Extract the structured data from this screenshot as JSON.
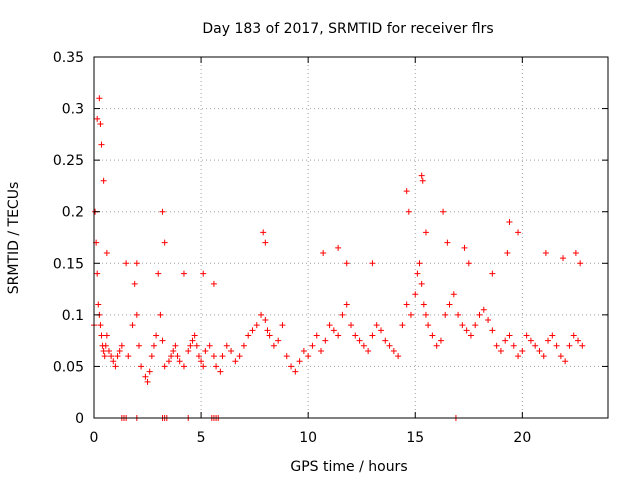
{
  "chart_data": {
    "type": "scatter",
    "title": "Day 183 of 2017, SRMTID for receiver flrs",
    "xlabel": "GPS time / hours",
    "ylabel": "SRMTID / TECUs",
    "xlim": [
      0,
      24
    ],
    "ylim": [
      0,
      0.35
    ],
    "x_ticks": [
      0,
      5,
      10,
      15,
      20
    ],
    "x_tick_labels": [
      "0",
      "5",
      "10",
      "15",
      "20"
    ],
    "y_ticks": [
      0,
      0.05,
      0.1,
      0.15,
      0.2,
      0.25,
      0.3,
      0.35
    ],
    "y_tick_labels": [
      "0",
      "0.05",
      "0.1",
      "0.15",
      "0.2",
      "0.25",
      "0.3",
      "0.35"
    ],
    "grid": true,
    "legend": "none",
    "marker": "+",
    "color": "#ff0000",
    "series": [
      {
        "x": [
          0.0,
          0.05,
          0.1,
          0.15,
          0.2,
          0.25,
          0.3,
          0.35,
          0.4,
          0.45,
          0.5,
          0.55,
          0.6,
          0.7,
          0.8,
          0.9,
          1.0,
          1.1,
          1.2,
          1.3,
          1.6,
          1.8,
          1.9,
          2.0,
          2.1,
          2.2,
          2.4,
          2.5,
          2.6,
          2.7,
          2.8,
          2.9,
          3.0,
          3.1,
          3.2,
          3.3,
          3.5,
          3.6,
          3.7,
          3.8,
          3.9,
          4.0,
          4.2,
          4.4,
          4.5,
          4.6,
          4.7,
          4.8,
          4.9,
          5.0,
          5.1,
          5.2,
          5.4,
          5.6,
          5.7,
          5.9,
          6.0,
          6.2,
          6.4,
          6.6,
          6.8,
          7.0,
          7.2,
          7.4,
          7.6,
          7.8,
          8.0,
          8.1,
          8.2,
          8.4,
          8.6,
          8.8,
          9.0,
          9.2,
          9.4,
          9.6,
          9.8,
          10.0,
          10.2,
          10.4,
          10.6,
          10.8,
          11.0,
          11.2,
          11.4,
          11.6,
          11.8,
          12.0,
          12.2,
          12.4,
          12.6,
          12.8,
          13.0,
          13.2,
          13.4,
          13.6,
          13.8,
          14.0,
          14.2,
          14.4,
          14.6,
          14.8,
          15.0,
          15.1,
          15.2,
          15.3,
          15.4,
          15.5,
          15.6,
          15.8,
          16.0,
          16.2,
          16.4,
          16.6,
          16.8,
          17.0,
          17.2,
          17.4,
          17.6,
          17.8,
          18.0,
          18.2,
          18.4,
          18.6,
          18.8,
          19.0,
          19.2,
          19.4,
          19.6,
          19.8,
          20.0,
          20.2,
          20.4,
          20.6,
          20.8,
          21.0,
          21.2,
          21.4,
          21.6,
          21.8,
          22.0,
          22.2,
          22.4,
          22.6,
          22.8,
          0.15,
          0.25,
          0.3,
          0.35,
          0.45,
          0.6,
          1.5,
          2.0,
          3.2,
          3.3,
          4.2,
          5.1,
          5.6,
          7.9,
          8.0,
          10.7,
          11.4,
          11.8,
          13.0,
          14.6,
          14.7,
          15.3,
          15.35,
          15.5,
          16.3,
          16.5,
          17.3,
          17.5,
          18.6,
          19.3,
          19.4,
          19.8,
          21.1,
          21.9,
          22.5,
          22.7,
          1.3,
          1.4,
          1.5,
          2.0,
          3.2,
          3.3,
          3.4,
          4.4,
          5.5,
          5.6,
          5.7,
          5.8,
          16.9
        ],
        "y": [
          0.09,
          0.2,
          0.17,
          0.14,
          0.11,
          0.1,
          0.09,
          0.08,
          0.07,
          0.065,
          0.06,
          0.07,
          0.08,
          0.065,
          0.06,
          0.055,
          0.05,
          0.06,
          0.065,
          0.07,
          0.06,
          0.09,
          0.13,
          0.1,
          0.07,
          0.05,
          0.04,
          0.035,
          0.045,
          0.06,
          0.07,
          0.08,
          0.14,
          0.1,
          0.075,
          0.05,
          0.055,
          0.06,
          0.065,
          0.07,
          0.06,
          0.055,
          0.05,
          0.065,
          0.07,
          0.075,
          0.08,
          0.07,
          0.06,
          0.055,
          0.05,
          0.065,
          0.07,
          0.06,
          0.05,
          0.045,
          0.06,
          0.07,
          0.065,
          0.055,
          0.06,
          0.07,
          0.08,
          0.085,
          0.09,
          0.1,
          0.095,
          0.085,
          0.08,
          0.07,
          0.075,
          0.09,
          0.06,
          0.05,
          0.045,
          0.055,
          0.065,
          0.06,
          0.07,
          0.08,
          0.065,
          0.075,
          0.09,
          0.085,
          0.08,
          0.1,
          0.11,
          0.09,
          0.08,
          0.075,
          0.07,
          0.065,
          0.08,
          0.09,
          0.085,
          0.075,
          0.07,
          0.065,
          0.06,
          0.09,
          0.11,
          0.1,
          0.12,
          0.14,
          0.15,
          0.13,
          0.11,
          0.1,
          0.09,
          0.08,
          0.07,
          0.075,
          0.1,
          0.11,
          0.12,
          0.1,
          0.09,
          0.085,
          0.08,
          0.09,
          0.1,
          0.105,
          0.095,
          0.085,
          0.07,
          0.065,
          0.075,
          0.08,
          0.07,
          0.06,
          0.065,
          0.08,
          0.075,
          0.07,
          0.065,
          0.06,
          0.075,
          0.08,
          0.07,
          0.06,
          0.055,
          0.07,
          0.08,
          0.075,
          0.07,
          0.29,
          0.31,
          0.285,
          0.265,
          0.23,
          0.16,
          0.15,
          0.15,
          0.2,
          0.17,
          0.14,
          0.14,
          0.13,
          0.18,
          0.17,
          0.16,
          0.165,
          0.15,
          0.15,
          0.22,
          0.2,
          0.235,
          0.23,
          0.18,
          0.2,
          0.17,
          0.165,
          0.15,
          0.14,
          0.16,
          0.19,
          0.18,
          0.16,
          0.155,
          0.16,
          0.15,
          0.0,
          0.0,
          0.0,
          0.0,
          0.0,
          0.0,
          0.0,
          0.0,
          0.0,
          0.0,
          0.0,
          0.0,
          0.0
        ]
      }
    ]
  }
}
